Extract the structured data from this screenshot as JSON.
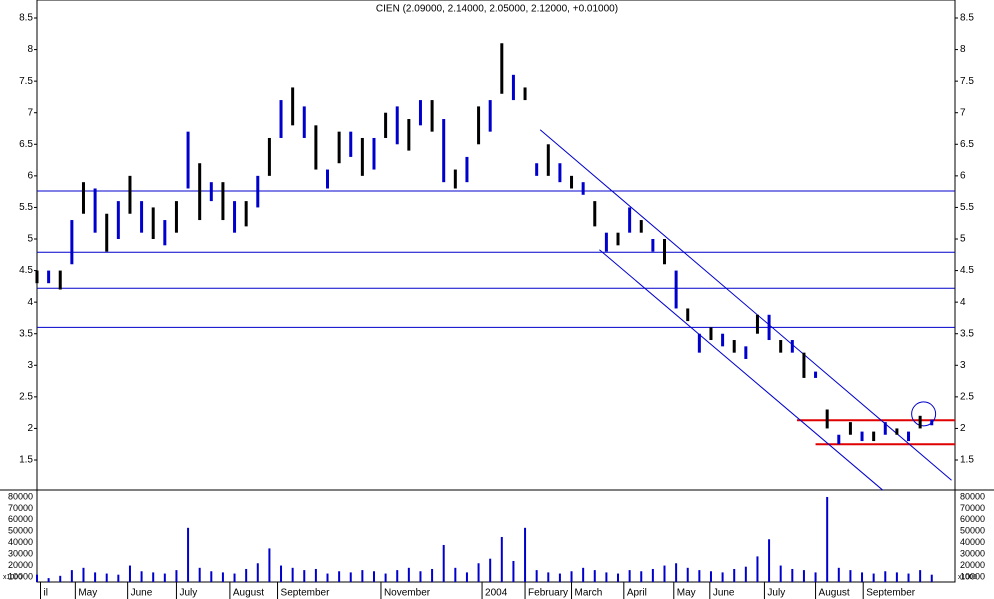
{
  "chart_data": {
    "type": "stock",
    "title": "CIEN (2.09000, 2.14000, 2.05000, 2.12000, +0.01000)",
    "x": [
      0,
      1,
      2,
      3,
      4,
      5,
      6,
      7,
      8,
      9,
      10,
      11,
      12,
      13,
      14,
      15,
      16,
      17,
      18,
      19,
      20,
      21,
      22,
      23,
      24,
      25,
      26,
      27,
      28,
      29,
      30,
      31,
      32,
      33,
      34,
      35,
      36,
      37,
      38,
      39,
      40,
      41,
      42,
      43,
      44,
      45,
      46,
      47,
      48,
      49,
      50,
      51,
      52,
      53,
      54,
      55,
      56,
      57,
      58,
      59,
      60,
      61,
      62,
      63,
      64,
      65,
      66,
      67,
      68,
      69,
      70,
      71,
      72,
      73,
      74,
      75,
      76,
      77
    ],
    "high": [
      4.5,
      4.5,
      4.5,
      5.3,
      5.9,
      5.8,
      5.4,
      5.6,
      6.0,
      5.6,
      5.5,
      5.3,
      5.6,
      6.7,
      6.2,
      5.9,
      5.9,
      5.6,
      5.6,
      6.0,
      6.6,
      7.2,
      7.4,
      7.1,
      6.8,
      6.1,
      6.7,
      6.7,
      6.6,
      6.6,
      7.0,
      7.1,
      6.9,
      7.2,
      7.2,
      6.9,
      6.1,
      6.3,
      7.1,
      7.2,
      8.1,
      7.6,
      7.4,
      6.2,
      6.5,
      6.2,
      6.0,
      5.9,
      5.6,
      5.1,
      5.1,
      5.5,
      5.3,
      5.0,
      5.0,
      4.5,
      3.9,
      3.5,
      3.6,
      3.5,
      3.4,
      3.3,
      3.8,
      3.8,
      3.4,
      3.4,
      3.2,
      2.9,
      2.3,
      1.9,
      2.1,
      1.95,
      1.95,
      2.1,
      2.0,
      1.95,
      2.2,
      2.14
    ],
    "low": [
      4.3,
      4.3,
      4.2,
      4.6,
      5.4,
      5.1,
      4.8,
      5.0,
      5.4,
      5.1,
      5.0,
      4.9,
      5.1,
      5.8,
      5.3,
      5.6,
      5.3,
      5.1,
      5.2,
      5.5,
      6.0,
      6.6,
      6.8,
      6.6,
      6.1,
      5.8,
      6.2,
      6.3,
      6.0,
      6.1,
      6.6,
      6.5,
      6.4,
      6.8,
      6.7,
      5.9,
      5.8,
      5.9,
      6.5,
      6.7,
      7.3,
      7.2,
      7.2,
      6.0,
      6.0,
      5.9,
      5.8,
      5.7,
      5.2,
      4.8,
      4.9,
      5.1,
      5.1,
      4.8,
      4.6,
      3.9,
      3.7,
      3.2,
      3.4,
      3.3,
      3.2,
      3.1,
      3.5,
      3.4,
      3.2,
      3.2,
      2.8,
      2.8,
      2.0,
      1.75,
      1.9,
      1.8,
      1.8,
      1.9,
      1.9,
      1.8,
      2.0,
      2.05
    ],
    "volume": [
      12000,
      9000,
      11000,
      16000,
      18000,
      14000,
      13000,
      12000,
      20000,
      15000,
      14000,
      13000,
      16000,
      53000,
      18000,
      15000,
      14000,
      13000,
      17000,
      22000,
      35000,
      20000,
      18000,
      16000,
      17000,
      13000,
      15000,
      14000,
      16000,
      15000,
      13000,
      16000,
      18000,
      15000,
      17000,
      38000,
      18000,
      14000,
      22000,
      26000,
      45000,
      24000,
      53000,
      16000,
      14000,
      13000,
      15000,
      18000,
      16000,
      14000,
      13000,
      16000,
      15000,
      17000,
      20000,
      22000,
      18000,
      16000,
      15000,
      14000,
      17000,
      19000,
      28000,
      43000,
      20000,
      17000,
      16000,
      14000,
      80000,
      18000,
      16000,
      14000,
      13000,
      15000,
      14000,
      13000,
      16000,
      12000
    ],
    "colors": [
      "#000000",
      "#0000cc"
    ],
    "xlim": [
      0,
      79
    ],
    "xticks": [
      {
        "value": 0.3,
        "label": "il"
      },
      {
        "value": 3.3,
        "label": "May"
      },
      {
        "value": 7.8,
        "label": "June"
      },
      {
        "value": 12,
        "label": "July"
      },
      {
        "value": 16.6,
        "label": "August"
      },
      {
        "value": 20.7,
        "label": "September"
      },
      {
        "value": 29.6,
        "label": "November"
      },
      {
        "value": 38.3,
        "label": "2004"
      },
      {
        "value": 42,
        "label": "February"
      },
      {
        "value": 46,
        "label": "March"
      },
      {
        "value": 50.5,
        "label": "April"
      },
      {
        "value": 54.8,
        "label": "May"
      },
      {
        "value": 57.9,
        "label": "June"
      },
      {
        "value": 62.6,
        "label": "July"
      },
      {
        "value": 67,
        "label": "August"
      },
      {
        "value": 71.1,
        "label": "September"
      }
    ],
    "ylim": [
      1.025,
      8.785
    ],
    "yticks": [
      1.5,
      2.0,
      2.5,
      3.0,
      3.5,
      4.0,
      4.5,
      5.0,
      5.5,
      6.0,
      6.5,
      7.0,
      7.5,
      8.0,
      8.5
    ],
    "volume_ylim": [
      5600,
      86100
    ],
    "volume_yticks": [
      10000,
      20000,
      30000,
      40000,
      50000,
      60000,
      70000,
      80000
    ],
    "volume_unit": "x1000",
    "levels": [
      5.76,
      4.79,
      4.22,
      3.6
    ],
    "red_levels": [
      {
        "y": 2.13,
        "x": [
          65.4,
          79
        ]
      },
      {
        "y": 1.75,
        "x": [
          67,
          79
        ]
      }
    ],
    "channel": [
      {
        "x": [
          43.3,
          78.7
        ],
        "y": [
          6.73,
          1.18
        ]
      },
      {
        "x": [
          48.4,
          72.8
        ],
        "y": [
          4.83,
          1.02
        ]
      }
    ],
    "circle": {
      "x": 76.3,
      "y": 2.23
    }
  }
}
